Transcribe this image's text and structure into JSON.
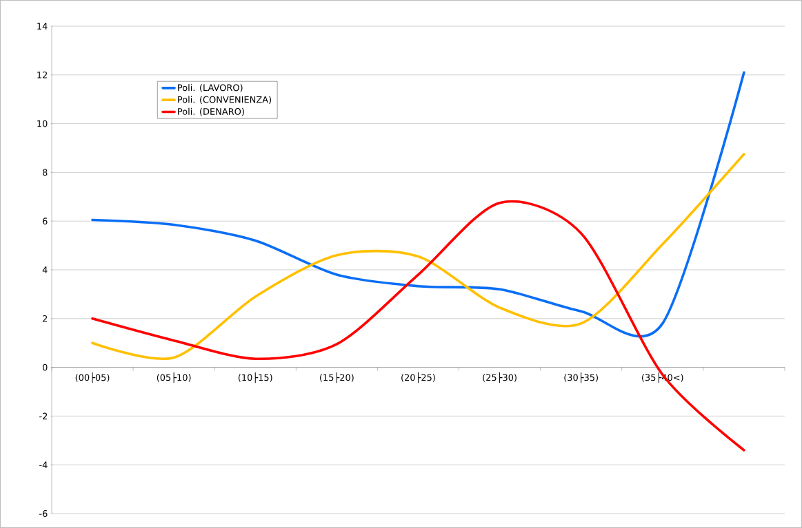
{
  "chart_data": {
    "type": "line",
    "categories": [
      "(00├05)",
      "(05├10)",
      "(10├15)",
      "(15├20)",
      "(20├25)",
      "(25├30)",
      "(30├35)",
      "(35├40<)",
      null
    ],
    "series": [
      {
        "name": "Poli. (LAVORO)",
        "color": "#0a6ef5",
        "values": [
          6.05,
          5.85,
          5.2,
          3.8,
          3.33,
          3.2,
          2.3,
          1.8,
          12.1
        ]
      },
      {
        "name": "Poli. (CONVENIENZA)",
        "color": "#ffc000",
        "values": [
          1.0,
          0.4,
          2.9,
          4.6,
          4.55,
          2.45,
          1.8,
          5.05,
          8.75
        ]
      },
      {
        "name": "Poli. (DENARO)",
        "color": "#ff0000",
        "values": [
          2.0,
          1.1,
          0.35,
          0.95,
          3.8,
          6.75,
          5.5,
          -0.3,
          -3.4
        ]
      }
    ],
    "ylim": [
      -6,
      14
    ],
    "yticks": [
      -6,
      -4,
      -2,
      0,
      2,
      4,
      6,
      8,
      10,
      12,
      14
    ],
    "grid": "y",
    "legend": "top left",
    "marker": "none",
    "line_style": "solid"
  }
}
